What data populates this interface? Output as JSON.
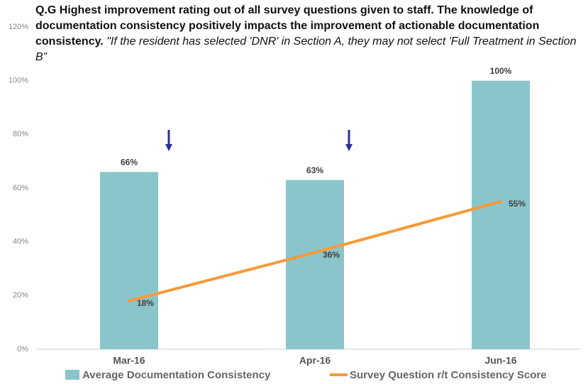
{
  "chart_data": {
    "type": "bar",
    "title": "Q.G Highest improvement rating out of all survey questions given to staff. The knowledge of documentation consistency positively impacts the improvement of actionable documentation consistency.",
    "subtitle": "\"If the resident has selected 'DNR' in Section A, they may not select 'Full Treatment in Section B”",
    "categories": [
      "Mar-16",
      "Apr-16",
      "Jun-16"
    ],
    "series": [
      {
        "name": "Average Documentation Consistency",
        "type": "bar",
        "color": "#8bc5cc",
        "values": [
          66,
          63,
          100
        ],
        "value_labels": [
          "66%",
          "63%",
          "100%"
        ]
      },
      {
        "name": "Survey Question r/t Consistency Score",
        "type": "line",
        "color": "#f79a3a",
        "values": [
          18,
          36,
          55
        ],
        "value_labels": [
          "18%",
          "36%",
          "55%"
        ]
      }
    ],
    "ylim": [
      0,
      120
    ],
    "yticks": [
      {
        "value": 0,
        "label": "0%"
      },
      {
        "value": 20,
        "label": "20%"
      },
      {
        "value": 40,
        "label": "40%"
      },
      {
        "value": 60,
        "label": "60%"
      },
      {
        "value": 80,
        "label": "80%"
      },
      {
        "value": 100,
        "label": "100%"
      },
      {
        "value": 120,
        "label": "120%"
      }
    ],
    "legend": "bottom"
  }
}
